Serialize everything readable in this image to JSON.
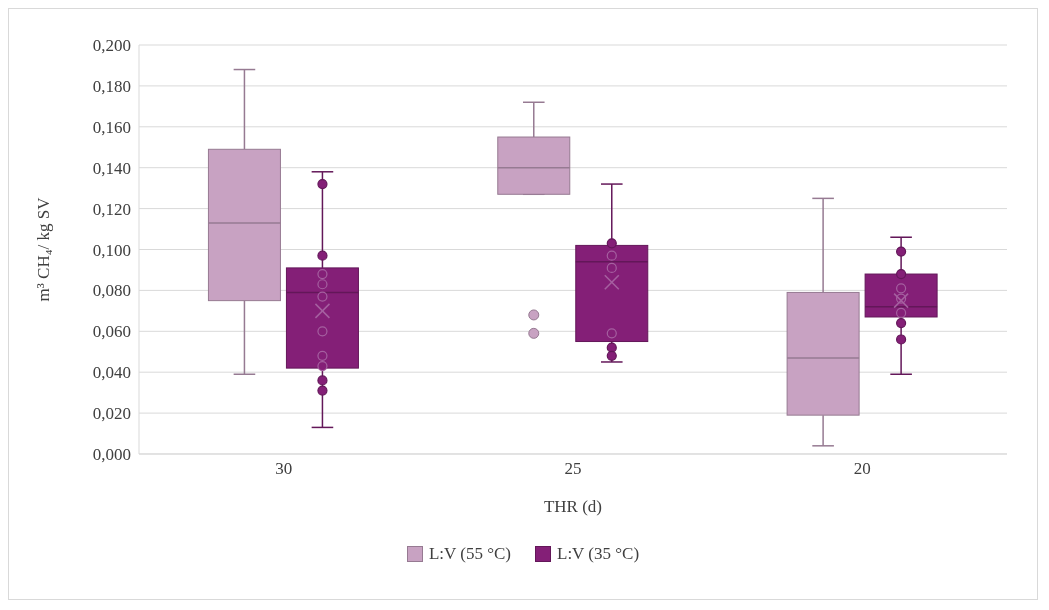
{
  "chart_data": {
    "type": "box",
    "xlabel": "THR (d)",
    "ylabel": "m³ CH₄/ kg SV",
    "categories": [
      "30",
      "25",
      "20"
    ],
    "ylim": [
      0,
      0.2
    ],
    "yticks": [
      {
        "value": 0,
        "label": "0,000"
      },
      {
        "value": 0.02,
        "label": "0,020"
      },
      {
        "value": 0.04,
        "label": "0,040"
      },
      {
        "value": 0.06,
        "label": "0,060"
      },
      {
        "value": 0.08,
        "label": "0,080"
      },
      {
        "value": 0.1,
        "label": "0,100"
      },
      {
        "value": 0.12,
        "label": "0,120"
      },
      {
        "value": 0.14,
        "label": "0,140"
      },
      {
        "value": 0.16,
        "label": "0,160"
      },
      {
        "value": 0.18,
        "label": "0,180"
      },
      {
        "value": 0.2,
        "label": "0,200"
      }
    ],
    "grid": "y",
    "legend": "bottom",
    "series": [
      {
        "name": "L:V (55 °C)",
        "color": "#c8a2c2",
        "boxes": [
          {
            "low": 0.039,
            "q1": 0.075,
            "median": 0.113,
            "q3": 0.149,
            "high": 0.188
          },
          {
            "low": 0.127,
            "q1": 0.127,
            "median": 0.14,
            "q3": 0.155,
            "high": 0.172,
            "outliers": [
              0.068,
              0.059
            ]
          },
          {
            "low": 0.004,
            "q1": 0.019,
            "median": 0.047,
            "q3": 0.079,
            "high": 0.125
          }
        ]
      },
      {
        "name": "L:V (35 °C)",
        "color": "#841f77",
        "boxes": [
          {
            "low": 0.013,
            "q1": 0.042,
            "median": 0.079,
            "q3": 0.091,
            "high": 0.138,
            "mean": 0.07
          },
          {
            "low": 0.045,
            "q1": 0.055,
            "median": 0.094,
            "q3": 0.102,
            "high": 0.132,
            "mean": 0.084
          },
          {
            "low": 0.039,
            "q1": 0.067,
            "median": 0.072,
            "q3": 0.088,
            "high": 0.106,
            "mean": 0.075
          }
        ]
      },
      {
        "type": "scatter",
        "color": "#841f77",
        "x": [
          "30",
          "30",
          "30",
          "30",
          "30",
          "30",
          "30",
          "30",
          "30",
          "30",
          "25",
          "25",
          "25",
          "25",
          "25",
          "25",
          "25",
          "20",
          "20",
          "20",
          "20",
          "20",
          "20",
          "20"
        ],
        "values": [
          0.132,
          0.097,
          0.088,
          0.083,
          0.077,
          0.06,
          0.048,
          0.043,
          0.036,
          0.031,
          0.103,
          0.097,
          0.091,
          0.059,
          0.052,
          0.048,
          null,
          0.099,
          0.088,
          0.081,
          0.076,
          0.069,
          0.064,
          0.056
        ]
      }
    ]
  }
}
